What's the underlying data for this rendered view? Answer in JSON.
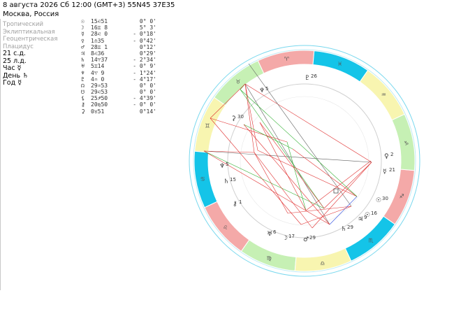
{
  "header": {
    "title": "8 августа 2026  Сб  12:00 (GMT+3) 55N45  37E35",
    "location": "Москва, Россия"
  },
  "settings": [
    {
      "label": "Тропический",
      "style": "gray"
    },
    {
      "label": "Эклиптикальная",
      "style": "gray"
    },
    {
      "label": "Геоцентрическая",
      "style": "gray"
    },
    {
      "label": "Плацидус",
      "style": "gray"
    },
    {
      "label": "21 с.д.",
      "style": "black"
    },
    {
      "label": "25 л.д.",
      "style": "black"
    },
    {
      "label": "Час ☿",
      "style": "black"
    },
    {
      "label": "День ♄",
      "style": "black"
    },
    {
      "label": "Год ☿",
      "style": "black"
    }
  ],
  "planets": [
    {
      "glyph": "☉",
      "pos": "15♌51",
      "lat": "0° 0'"
    },
    {
      "glyph": "☽",
      "pos": "16♊ 8",
      "lat": "5° 3'"
    },
    {
      "glyph": "☿",
      "pos": "28♌ 0",
      "lat": "- 0°18'"
    },
    {
      "glyph": "♀",
      "pos": " 1♎35",
      "lat": "- 0°42'"
    },
    {
      "glyph": "♂",
      "pos": "28♊ 1",
      "lat": "0°12'"
    },
    {
      "glyph": "♃",
      "pos": " 8♌36",
      "lat": "0°29'"
    },
    {
      "glyph": "♄",
      "pos": "14♈37",
      "lat": "- 2°34'"
    },
    {
      "glyph": "♅",
      "pos": " 5♊14",
      "lat": "- 0° 9'"
    },
    {
      "glyph": "♆",
      "pos": " 4♈ 9",
      "lat": "- 1°24'"
    },
    {
      "glyph": "♇",
      "pos": " 4♒ 0",
      "lat": "- 4°17'"
    },
    {
      "glyph": "☊",
      "pos": "29♒53",
      "lat": "0° 0'"
    },
    {
      "glyph": "☋",
      "pos": "29♌53",
      "lat": "0° 0'"
    },
    {
      "glyph": "⚸",
      "pos": "25♐50",
      "lat": "- 4°39'"
    },
    {
      "glyph": "⚷",
      "pos": "20♍50",
      "lat": "- 0° 0'"
    },
    {
      "glyph": "⚳",
      "pos": " 0♉51",
      "lat": "0°14'"
    }
  ],
  "wheel": {
    "signs": [
      "♈",
      "♉",
      "♊",
      "♋",
      "♌",
      "♍",
      "♎",
      "♏",
      "♐",
      "♑",
      "♒",
      "♓"
    ],
    "element_colors": {
      "fire": "#f4a9a8",
      "earth": "#c6f0b4",
      "air": "#f8f5b0",
      "water": "#14c4e8"
    },
    "planet_labels": [
      {
        "glyph": "♇",
        "deg": "26"
      },
      {
        "glyph": "♆",
        "deg": "5"
      },
      {
        "glyph": "⚳",
        "deg": "30"
      },
      {
        "glyph": "♀",
        "deg": "2"
      },
      {
        "glyph": "☿",
        "deg": "21"
      },
      {
        "glyph": "♆",
        "deg": "5"
      },
      {
        "glyph": "♄",
        "deg": "15"
      },
      {
        "glyph": "⚷",
        "deg": "1"
      },
      {
        "glyph": "☉",
        "deg": "30"
      },
      {
        "glyph": "☉",
        "deg": "16"
      },
      {
        "glyph": "♃",
        "deg": "9"
      },
      {
        "glyph": "♄",
        "deg": "29"
      },
      {
        "glyph": "♂",
        "deg": "29"
      },
      {
        "glyph": "☽",
        "deg": "17"
      },
      {
        "glyph": "♅",
        "deg": "6"
      }
    ]
  }
}
